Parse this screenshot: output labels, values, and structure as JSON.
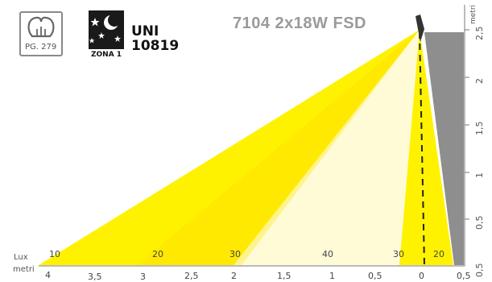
{
  "header": {
    "page_ref": "PG. 279",
    "standard_line1": "UNI",
    "standard_line2": "10819",
    "zone_label": "ZONA 1",
    "product_title": "7104 2x18W FSD",
    "icons": {
      "page": "lamp-bulb-outline-icon",
      "zone": "starry-night-moon-icon"
    }
  },
  "diagram": {
    "lux_axis_label": "Lux",
    "metri_axis_label": "metri",
    "vertical_axis_label": "metri",
    "lux_values_left": [
      "10",
      "20",
      "30",
      "40",
      "30"
    ],
    "lux_values_right": [
      "20"
    ],
    "x_tick_labels": [
      "4",
      "3,5",
      "3",
      "2,5",
      "2",
      "1,5",
      "1",
      "0,5",
      "0",
      "0,5"
    ],
    "y_tick_labels": [
      "2,5",
      "2",
      "1,5",
      "1",
      "0,5",
      "0,5"
    ],
    "colors": {
      "yellow_strong": "#fff200",
      "yellow_mid": "#fff59a",
      "yellow_pale": "#fffbd4",
      "wall_gray": "#8e8e8e",
      "lamp_dark": "#333333"
    }
  }
}
